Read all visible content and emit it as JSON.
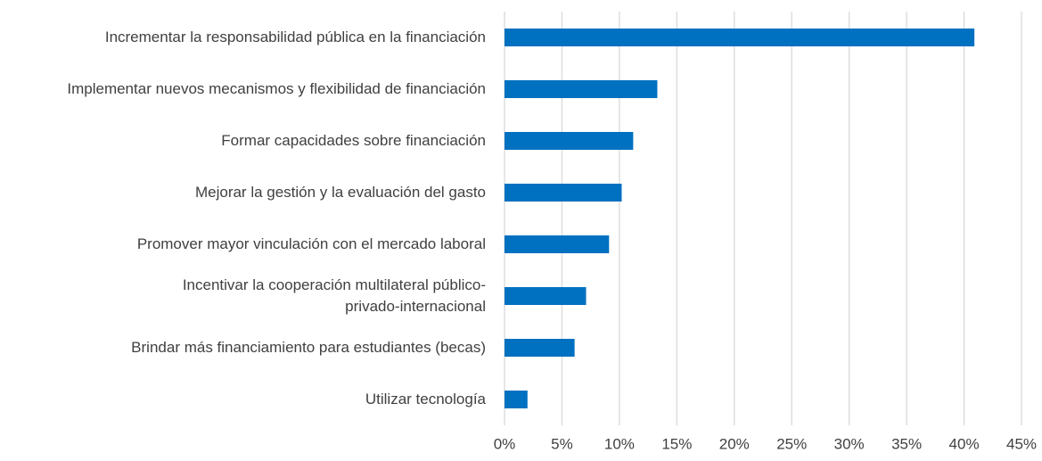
{
  "chart_data": {
    "type": "bar",
    "orientation": "horizontal",
    "categories": [
      "Incrementar la responsabilidad pública en la financiación",
      "Implementar nuevos mecanismos y flexibilidad de financiación",
      "Formar capacidades sobre financiación",
      "Mejorar la gestión y la evaluación del gasto",
      "Promover mayor vinculación con el mercado laboral",
      "Incentivar la cooperación multilateral público-privado-internacional",
      "Brindar más financiamiento para estudiantes (becas)",
      "Utilizar tecnología"
    ],
    "values": [
      40.9,
      13.3,
      11.2,
      10.2,
      9.1,
      7.1,
      6.1,
      2.0
    ],
    "color": "#0070c0",
    "xlim": [
      0,
      45
    ],
    "xticks": [
      {
        "value": 0,
        "label": "0%"
      },
      {
        "value": 5,
        "label": "5%"
      },
      {
        "value": 10,
        "label": "10%"
      },
      {
        "value": 15,
        "label": "15%"
      },
      {
        "value": 20,
        "label": "20%"
      },
      {
        "value": 25,
        "label": "25%"
      },
      {
        "value": 30,
        "label": "30%"
      },
      {
        "value": 35,
        "label": "35%"
      },
      {
        "value": 40,
        "label": "40%"
      },
      {
        "value": 45,
        "label": "45%"
      }
    ],
    "grid": true
  }
}
